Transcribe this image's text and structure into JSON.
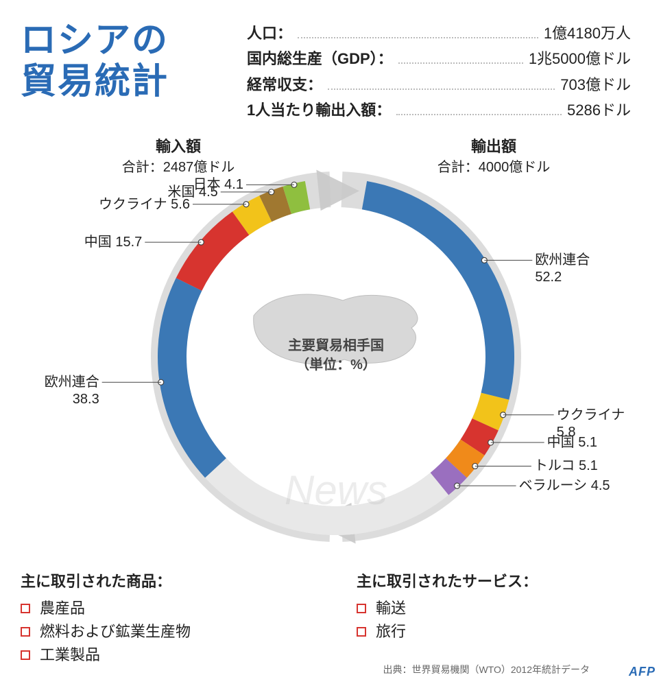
{
  "title_line1": "ロシアの",
  "title_line2": "貿易統計",
  "title_color": "#2a6bb5",
  "stats": [
    {
      "label": "人口：",
      "value": "1億4180万人"
    },
    {
      "label": "国内総生産（GDP）：",
      "value": "1兆5000億ドル"
    },
    {
      "label": "経常収支：",
      "value": "703億ドル"
    },
    {
      "label": "1人当たり輸出入額：",
      "value": "5286ドル"
    }
  ],
  "center": {
    "line1": "主要貿易相手国",
    "line2": "（単位：%）",
    "map_fill": "#d8d8d8",
    "map_stroke": "#bfbfbf"
  },
  "watermark": "News",
  "imports": {
    "title": "輸入額",
    "subtitle": "合計：2487億ドル",
    "arrow_color": "#c9c9c9",
    "other_color": "#e8e8e8",
    "segments": [
      {
        "name": "日本",
        "value": 4.1,
        "color": "#8fbf3f",
        "label": "日本 4.1"
      },
      {
        "name": "米国",
        "value": 4.5,
        "color": "#a07830",
        "label": "米国 4.5"
      },
      {
        "name": "ウクライナ",
        "value": 5.6,
        "color": "#f2c31a",
        "label": "ウクライナ 5.6"
      },
      {
        "name": "中国",
        "value": 15.7,
        "color": "#d7342f",
        "label": "中国 15.7"
      },
      {
        "name": "欧州連合",
        "value": 38.3,
        "color": "#3b78b5",
        "label": "欧州連合\n38.3"
      }
    ]
  },
  "exports": {
    "title": "輸出額",
    "subtitle": "合計：4000億ドル",
    "arrow_color": "#c9c9c9",
    "other_color": "#e8e8e8",
    "segments": [
      {
        "name": "欧州連合",
        "value": 52.2,
        "color": "#3b78b5",
        "label": "欧州連合\n52.2"
      },
      {
        "name": "ウクライナ",
        "value": 5.8,
        "color": "#f2c31a",
        "label": "ウクライナ\n5.8"
      },
      {
        "name": "中国",
        "value": 5.1,
        "color": "#d7342f",
        "label": "中国 5.1"
      },
      {
        "name": "トルコ",
        "value": 5.1,
        "color": "#f08a1a",
        "label": "トルコ 5.1"
      },
      {
        "name": "ベラルーシ",
        "value": 4.5,
        "color": "#9a6fbf",
        "label": "ベラルーシ 4.5"
      }
    ]
  },
  "arc_style": {
    "outer_r": 260,
    "inner_r": 218,
    "sweep_deg": 180,
    "marker_stroke": "#444444",
    "marker_fill": "#ffffff"
  },
  "goods": {
    "title": "主に取引された商品：",
    "items": [
      "農産品",
      "燃料および鉱業生産物",
      "工業製品"
    ]
  },
  "services": {
    "title": "主に取引されたサービス：",
    "items": [
      "輸送",
      "旅行"
    ]
  },
  "source": "出典：世界貿易機関（WTO）2012年統計データ",
  "credit": "AFP"
}
